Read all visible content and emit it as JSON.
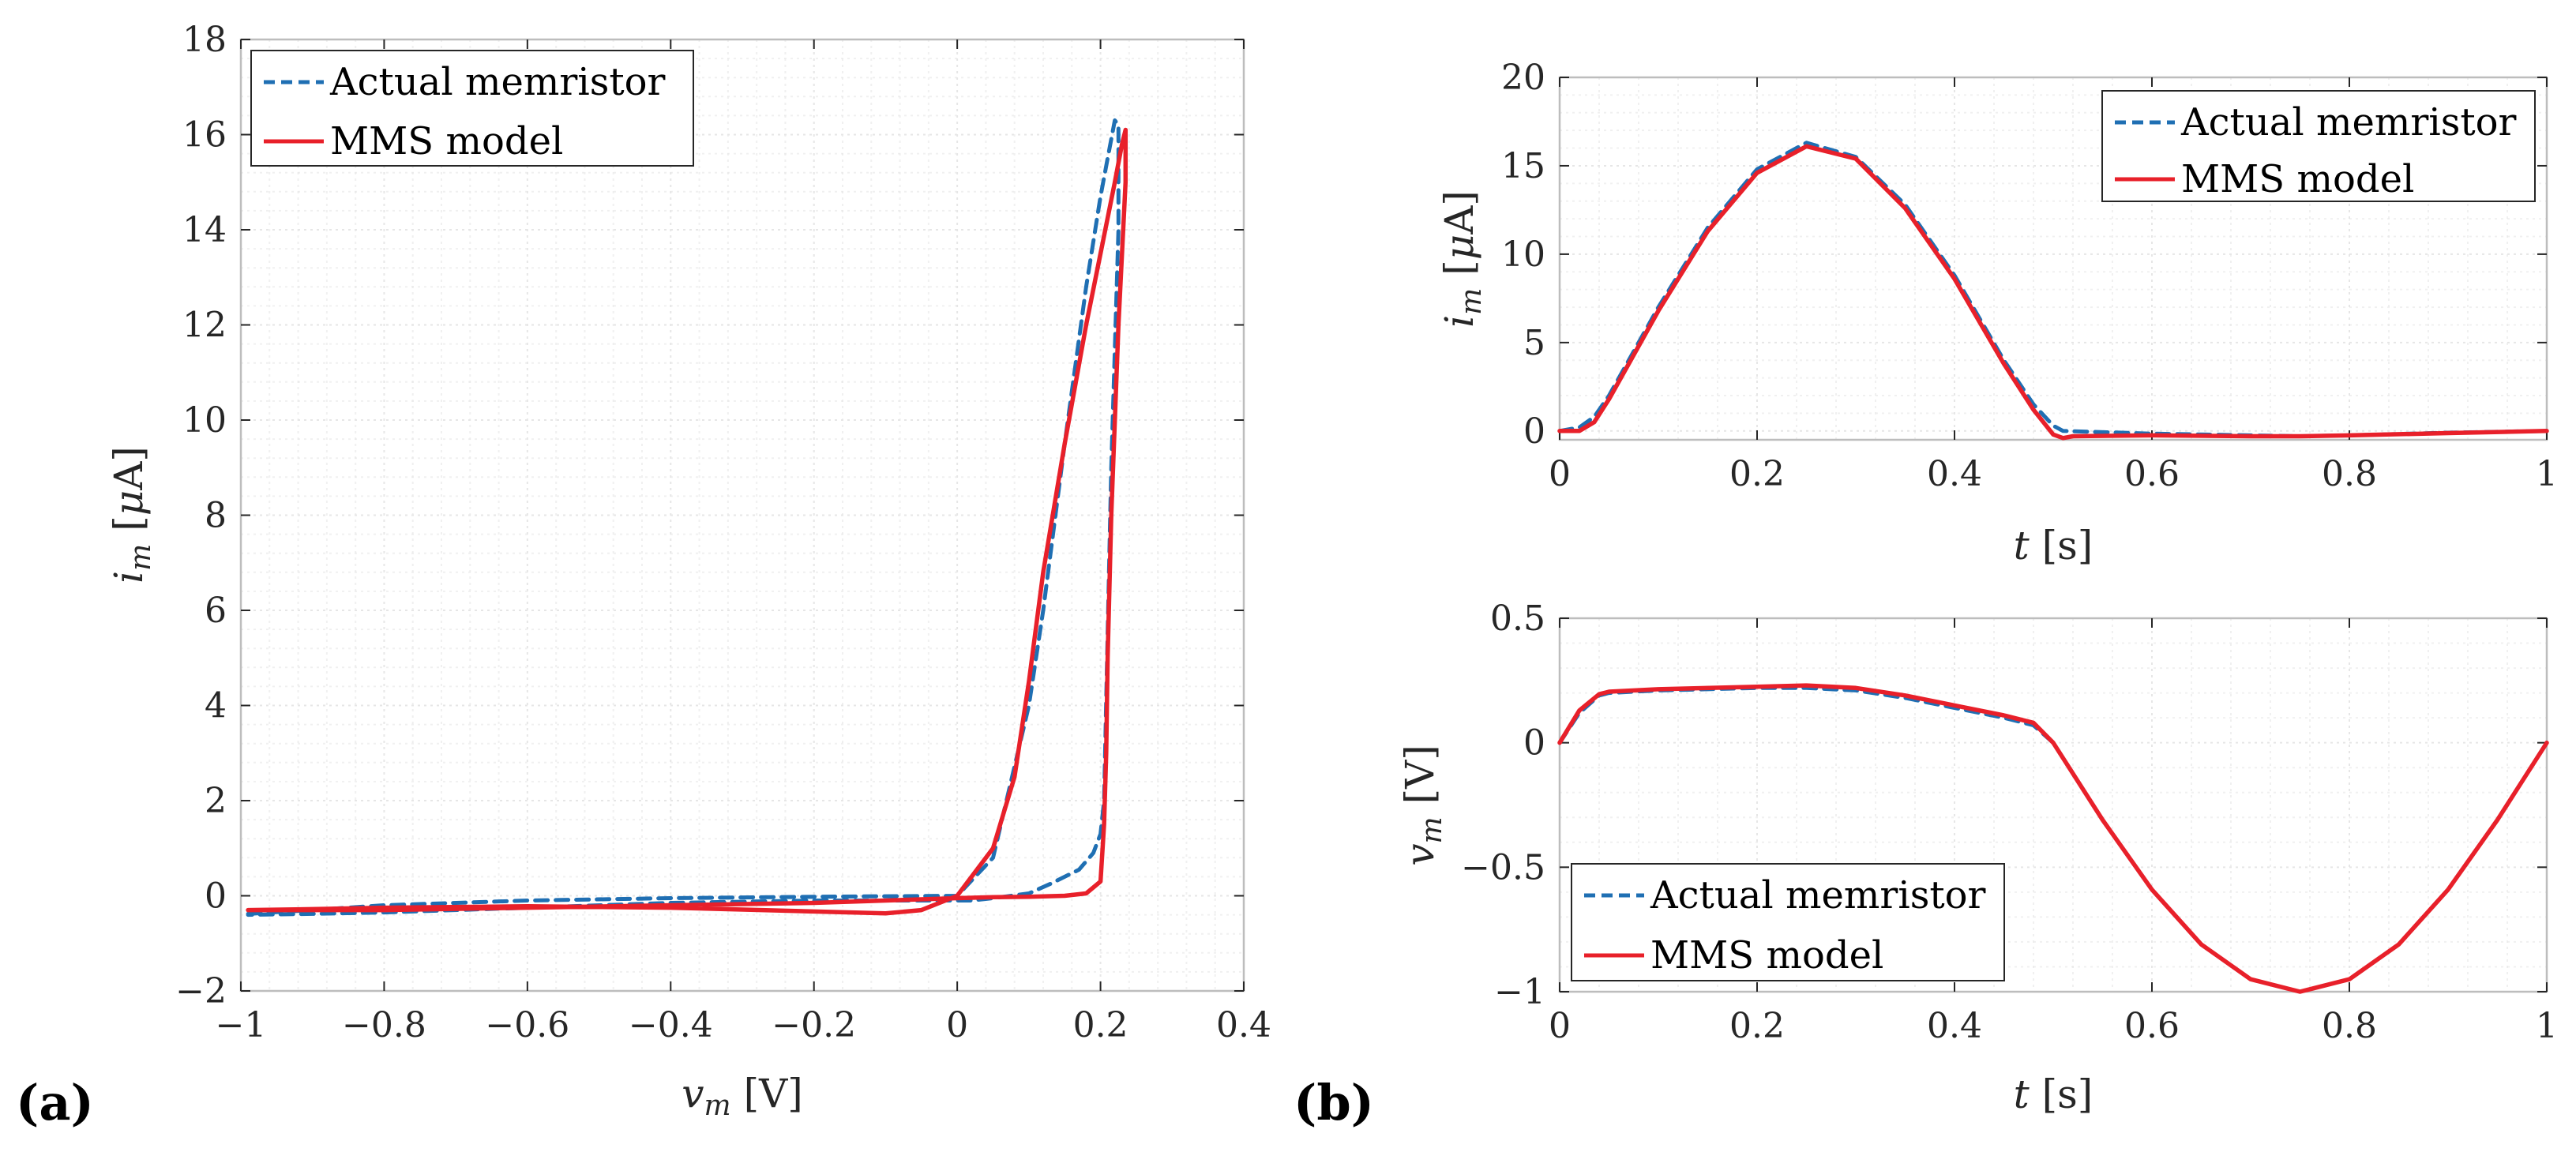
{
  "panel_labels": [
    "(a)",
    "(b)"
  ],
  "colors": {
    "actual": "#1f6fb3",
    "model": "#e8202a",
    "axis": "#262626"
  },
  "chart_data": [
    {
      "id": "a",
      "type": "line",
      "xlabel_parts": [
        "v",
        "m",
        " [V]"
      ],
      "ylabel_parts": [
        "i",
        "m",
        " [",
        "μ",
        "A]"
      ],
      "xlim": [
        -1,
        0.4
      ],
      "ylim": [
        -2,
        18
      ],
      "xticks": [
        -1,
        -0.8,
        -0.6,
        -0.4,
        -0.2,
        0,
        0.2,
        0.4
      ],
      "xtick_labels": [
        "−1",
        "−0.8",
        "−0.6",
        "−0.4",
        "−0.2",
        "0",
        "0.2",
        "0.4"
      ],
      "yticks": [
        -2,
        0,
        2,
        4,
        6,
        8,
        10,
        12,
        14,
        16,
        18
      ],
      "ytick_labels": [
        "−2",
        "0",
        "2",
        "4",
        "6",
        "8",
        "10",
        "12",
        "14",
        "16",
        "18"
      ],
      "grid": true,
      "legend": {
        "position": "top-left",
        "entries": [
          "Actual memristor",
          "MMS model"
        ]
      },
      "series": [
        {
          "name": "Actual memristor",
          "style": "dashed",
          "x": [
            -0.99,
            -0.9,
            -0.8,
            -0.6,
            -0.4,
            -0.2,
            0.0,
            0.05,
            0.1,
            0.12,
            0.15,
            0.18,
            0.2,
            0.21,
            0.22,
            0.225,
            0.225,
            0.215,
            0.21,
            0.205,
            0.2,
            0.19,
            0.17,
            0.13,
            0.1,
            0.05,
            0.02,
            0.0,
            -0.05,
            -0.2,
            -0.4,
            -0.6,
            -0.8,
            -0.9,
            -0.99
          ],
          "y": [
            -0.38,
            -0.3,
            -0.2,
            -0.1,
            -0.05,
            -0.02,
            0.0,
            0.8,
            4.0,
            6.0,
            9.5,
            12.8,
            14.7,
            15.5,
            16.3,
            16.2,
            14.0,
            9.0,
            5.5,
            2.0,
            1.3,
            0.9,
            0.55,
            0.25,
            0.05,
            -0.05,
            -0.1,
            -0.1,
            -0.1,
            -0.1,
            -0.15,
            -0.25,
            -0.35,
            -0.38,
            -0.4
          ]
        },
        {
          "name": "MMS model",
          "style": "solid",
          "x": [
            -0.99,
            -0.9,
            -0.8,
            -0.6,
            -0.4,
            -0.2,
            -0.1,
            -0.05,
            0.0,
            0.05,
            0.08,
            0.1,
            0.12,
            0.15,
            0.18,
            0.2,
            0.22,
            0.23,
            0.235,
            0.235,
            0.225,
            0.215,
            0.21,
            0.208,
            0.205,
            0.2,
            0.18,
            0.15,
            0.1,
            0.05,
            0.0,
            -0.1,
            -0.2,
            -0.4,
            -0.6,
            -0.8,
            -0.99
          ],
          "y": [
            -0.3,
            -0.28,
            -0.25,
            -0.22,
            -0.25,
            -0.33,
            -0.37,
            -0.3,
            0.0,
            1.0,
            2.5,
            4.5,
            6.8,
            9.5,
            12.0,
            13.5,
            15.0,
            15.8,
            16.1,
            15.0,
            12.0,
            8.0,
            5.0,
            3.0,
            1.5,
            0.3,
            0.05,
            0.0,
            -0.02,
            -0.03,
            -0.05,
            -0.1,
            -0.15,
            -0.2,
            -0.25,
            -0.3,
            -0.3
          ]
        }
      ]
    },
    {
      "id": "b-top",
      "type": "line",
      "xlabel_parts": [
        "t",
        " [s]"
      ],
      "ylabel_parts": [
        "i",
        "m",
        " [",
        "μ",
        "A]"
      ],
      "xlim": [
        0,
        1
      ],
      "ylim": [
        -0.5,
        20
      ],
      "xticks": [
        0,
        0.2,
        0.4,
        0.6,
        0.8,
        1
      ],
      "xtick_labels": [
        "0",
        "0.2",
        "0.4",
        "0.6",
        "0.8",
        "1"
      ],
      "yticks": [
        0,
        5,
        10,
        15,
        20
      ],
      "ytick_labels": [
        "0",
        "5",
        "10",
        "15",
        "20"
      ],
      "grid": true,
      "legend": {
        "position": "top-right",
        "entries": [
          "Actual memristor",
          "MMS model"
        ]
      },
      "series": [
        {
          "name": "Actual memristor",
          "style": "dashed",
          "x": [
            0,
            0.02,
            0.035,
            0.05,
            0.1,
            0.15,
            0.2,
            0.25,
            0.3,
            0.35,
            0.4,
            0.45,
            0.48,
            0.5,
            0.51,
            0.6,
            0.7,
            0.75,
            0.8,
            0.9,
            1.0
          ],
          "y": [
            0.0,
            0.2,
            0.8,
            2.0,
            7.0,
            11.5,
            14.8,
            16.3,
            15.5,
            12.8,
            8.8,
            4.0,
            1.5,
            0.3,
            0.0,
            -0.15,
            -0.25,
            -0.3,
            -0.25,
            -0.1,
            0.0
          ]
        },
        {
          "name": "MMS model",
          "style": "solid",
          "x": [
            0,
            0.02,
            0.035,
            0.05,
            0.1,
            0.15,
            0.2,
            0.25,
            0.3,
            0.35,
            0.4,
            0.45,
            0.48,
            0.5,
            0.51,
            0.52,
            0.6,
            0.7,
            0.75,
            0.8,
            0.9,
            1.0
          ],
          "y": [
            0.0,
            0.0,
            0.5,
            1.8,
            6.8,
            11.3,
            14.6,
            16.1,
            15.4,
            12.6,
            8.6,
            3.8,
            1.2,
            -0.2,
            -0.4,
            -0.3,
            -0.25,
            -0.3,
            -0.3,
            -0.25,
            -0.12,
            0.0
          ]
        }
      ]
    },
    {
      "id": "b-bottom",
      "type": "line",
      "xlabel_parts": [
        "t",
        " [s]"
      ],
      "ylabel_parts": [
        "v",
        "m",
        " [V]"
      ],
      "xlim": [
        0,
        1
      ],
      "ylim": [
        -1,
        0.5
      ],
      "xticks": [
        0,
        0.2,
        0.4,
        0.6,
        0.8,
        1
      ],
      "xtick_labels": [
        "0",
        "0.2",
        "0.4",
        "0.6",
        "0.8",
        "1"
      ],
      "yticks": [
        -1,
        -0.5,
        0,
        0.5
      ],
      "ytick_labels": [
        "−1",
        "−0.5",
        "0",
        "0.5"
      ],
      "grid": true,
      "legend": {
        "position": "bottom-left",
        "entries": [
          "Actual memristor",
          "MMS model"
        ]
      },
      "series": [
        {
          "name": "Actual memristor",
          "style": "dashed",
          "x": [
            0,
            0.02,
            0.04,
            0.05,
            0.1,
            0.2,
            0.25,
            0.3,
            0.35,
            0.4,
            0.45,
            0.48,
            0.5,
            0.55,
            0.6,
            0.65,
            0.7,
            0.75,
            0.8,
            0.85,
            0.9,
            0.95,
            1.0
          ],
          "y": [
            0.0,
            0.12,
            0.19,
            0.2,
            0.21,
            0.22,
            0.22,
            0.21,
            0.18,
            0.14,
            0.1,
            0.07,
            0.0,
            -0.31,
            -0.59,
            -0.81,
            -0.95,
            -1.0,
            -0.95,
            -0.81,
            -0.59,
            -0.31,
            0.0
          ]
        },
        {
          "name": "MMS model",
          "style": "solid",
          "x": [
            0,
            0.02,
            0.04,
            0.05,
            0.1,
            0.2,
            0.25,
            0.3,
            0.35,
            0.4,
            0.45,
            0.48,
            0.5,
            0.55,
            0.6,
            0.65,
            0.7,
            0.75,
            0.8,
            0.85,
            0.9,
            0.95,
            1.0
          ],
          "y": [
            0.0,
            0.13,
            0.195,
            0.205,
            0.215,
            0.225,
            0.23,
            0.22,
            0.19,
            0.15,
            0.11,
            0.08,
            0.0,
            -0.31,
            -0.59,
            -0.81,
            -0.95,
            -1.0,
            -0.95,
            -0.81,
            -0.59,
            -0.31,
            0.0
          ]
        }
      ]
    }
  ]
}
